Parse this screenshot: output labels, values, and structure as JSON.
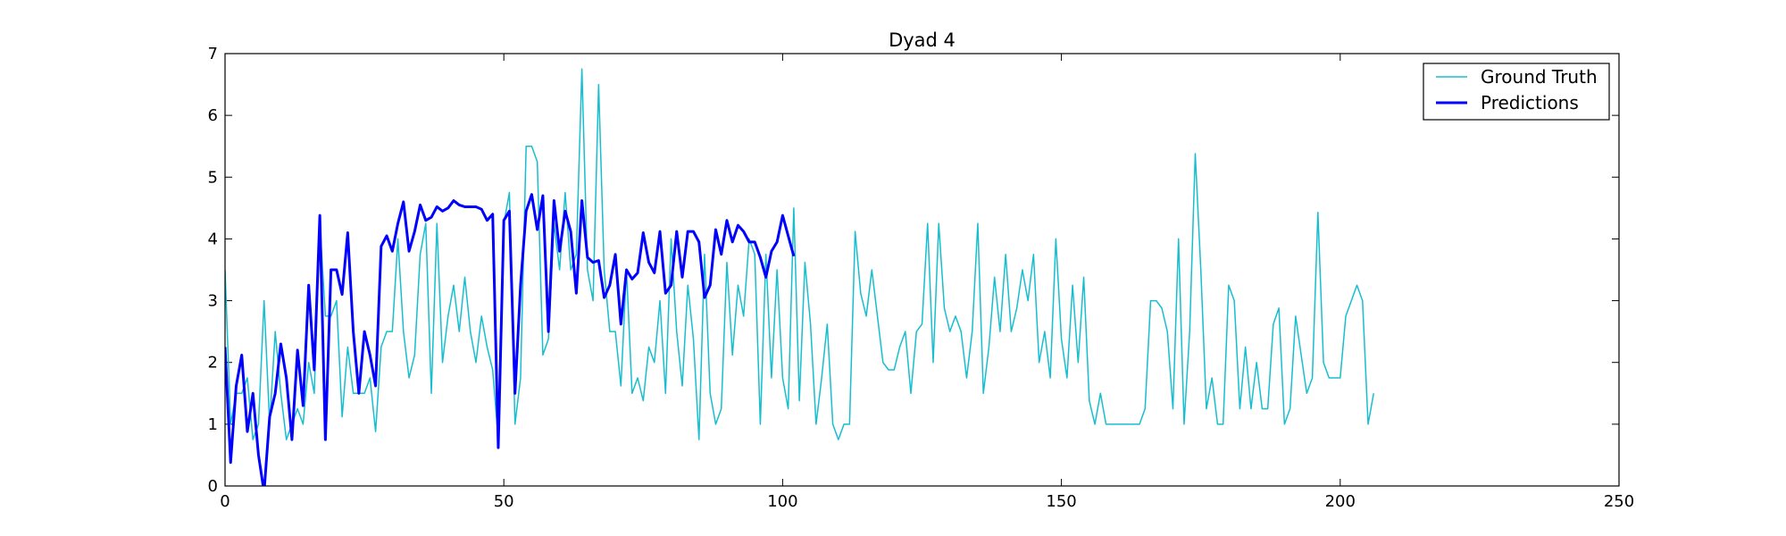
{
  "chart_data": {
    "type": "line",
    "title": "Dyad 4",
    "xlabel": "",
    "ylabel": "",
    "xlim": [
      0,
      250
    ],
    "ylim": [
      0,
      7
    ],
    "xticks": [
      0,
      50,
      100,
      150,
      200,
      250
    ],
    "yticks": [
      0,
      1,
      2,
      3,
      4,
      5,
      6,
      7
    ],
    "grid": false,
    "legend_position": "top-right",
    "series": [
      {
        "name": "Ground Truth",
        "color": "#17becf",
        "x_start": 0,
        "values": [
          3.5,
          1.0,
          1.5,
          1.5,
          1.75,
          0.75,
          1.0,
          3.0,
          1.0,
          2.5,
          1.5,
          0.75,
          1.0,
          1.25,
          1.0,
          2.0,
          1.5,
          4.25,
          2.75,
          2.75,
          3.0,
          1.12,
          2.25,
          1.5,
          1.5,
          1.5,
          1.75,
          0.88,
          2.25,
          2.5,
          2.5,
          4.0,
          2.5,
          1.75,
          2.12,
          3.75,
          4.25,
          1.5,
          4.25,
          2.0,
          2.75,
          3.25,
          2.5,
          3.38,
          2.5,
          2.0,
          2.75,
          2.25,
          1.88,
          0.75,
          4.25,
          4.75,
          1.0,
          1.75,
          5.5,
          5.5,
          5.25,
          2.12,
          2.38,
          4.25,
          3.5,
          4.75,
          3.5,
          3.75,
          6.75,
          3.5,
          3.0,
          6.5,
          3.5,
          2.5,
          2.5,
          1.62,
          3.5,
          1.5,
          1.75,
          1.38,
          2.25,
          2.0,
          3.0,
          1.5,
          4.0,
          2.5,
          1.62,
          3.25,
          2.38,
          0.75,
          3.75,
          1.5,
          1.0,
          1.25,
          3.62,
          2.12,
          3.25,
          2.75,
          4.0,
          3.75,
          1.0,
          3.75,
          1.75,
          3.5,
          1.75,
          1.25,
          4.5,
          1.38,
          3.62,
          2.62,
          1.0,
          1.75,
          2.62,
          1.0,
          0.75,
          1.0,
          1.0,
          4.12,
          3.12,
          2.75,
          3.5,
          2.75,
          2.0,
          1.88,
          1.88,
          2.25,
          2.5,
          1.5,
          2.5,
          2.62,
          4.25,
          2.0,
          4.25,
          2.88,
          2.5,
          2.75,
          2.5,
          1.75,
          2.5,
          4.25,
          1.5,
          2.25,
          3.38,
          2.5,
          3.75,
          2.5,
          2.88,
          3.5,
          3.0,
          3.75,
          2.0,
          2.5,
          1.75,
          4.0,
          2.38,
          1.75,
          3.25,
          2.0,
          3.38,
          1.38,
          1.0,
          1.5,
          1.0,
          1.0,
          1.0,
          1.0,
          1.0,
          1.0,
          1.0,
          1.25,
          3.0,
          3.0,
          2.88,
          2.5,
          1.25,
          4.0,
          1.0,
          2.5,
          5.38,
          3.5,
          1.25,
          1.75,
          1.0,
          1.0,
          3.25,
          3.0,
          1.25,
          2.25,
          1.25,
          2.0,
          1.25,
          1.25,
          2.62,
          2.88,
          1.0,
          1.25,
          2.75,
          2.12,
          1.5,
          1.75,
          4.43,
          2.0,
          1.75,
          1.75,
          1.75,
          2.75,
          3.0,
          3.25,
          3.0,
          1.0,
          1.5
        ]
      },
      {
        "name": "Predictions",
        "color": "#0000ff",
        "x_start": 0,
        "values": [
          2.25,
          0.38,
          1.62,
          2.12,
          0.88,
          1.5,
          0.5,
          -0.1,
          1.12,
          1.5,
          2.3,
          1.75,
          0.75,
          2.2,
          1.3,
          3.25,
          1.88,
          4.38,
          0.75,
          3.5,
          3.5,
          3.1,
          4.1,
          2.5,
          1.5,
          2.5,
          2.12,
          1.62,
          3.88,
          4.05,
          3.8,
          4.25,
          4.6,
          3.8,
          4.12,
          4.55,
          4.3,
          4.35,
          4.52,
          4.45,
          4.5,
          4.62,
          4.55,
          4.52,
          4.52,
          4.52,
          4.48,
          4.3,
          4.4,
          0.62,
          4.3,
          4.45,
          1.5,
          3.25,
          4.45,
          4.72,
          4.15,
          4.7,
          2.5,
          4.62,
          3.8,
          4.45,
          4.12,
          3.12,
          4.62,
          3.7,
          3.62,
          3.65,
          3.05,
          3.25,
          3.75,
          2.62,
          3.5,
          3.35,
          3.45,
          4.1,
          3.62,
          3.45,
          4.12,
          3.12,
          3.25,
          4.12,
          3.38,
          4.12,
          4.12,
          3.95,
          3.05,
          3.25,
          4.15,
          3.75,
          4.3,
          3.95,
          4.22,
          4.12,
          3.95,
          3.95,
          3.7,
          3.38,
          3.8,
          3.95,
          4.38,
          4.05,
          3.72
        ]
      }
    ]
  }
}
